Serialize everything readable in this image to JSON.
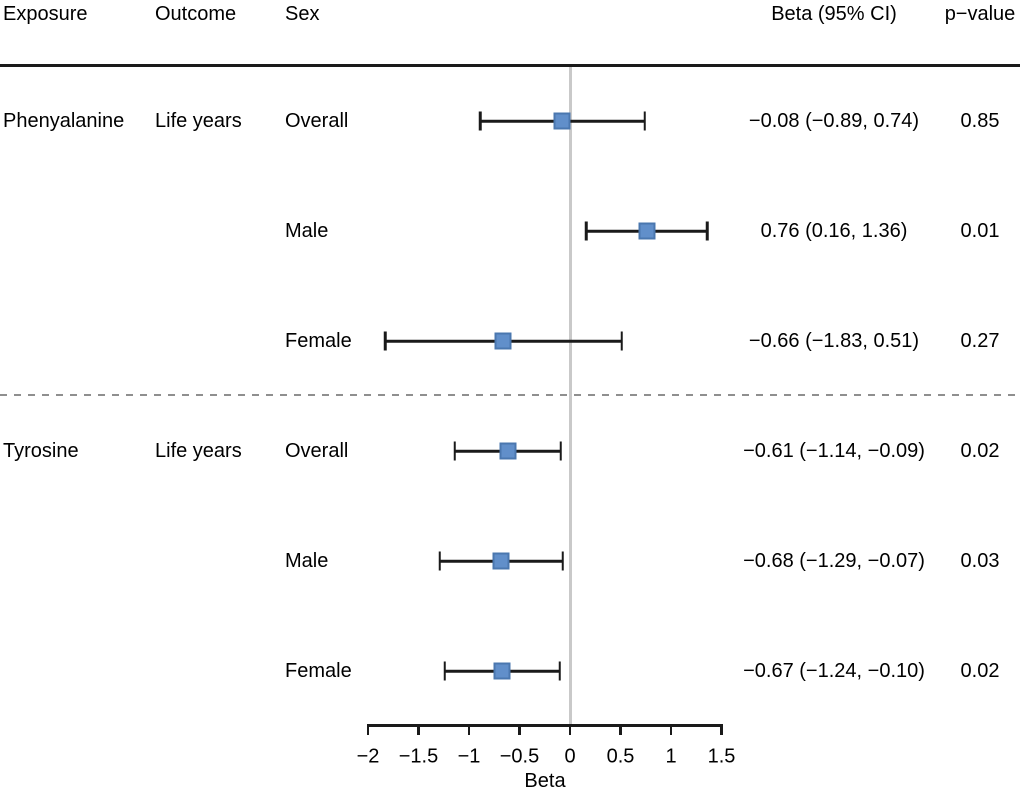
{
  "header": {
    "exposure": "Exposure",
    "outcome": "Outcome",
    "sex": "Sex",
    "beta_ci": "Beta (95% CI)",
    "p_value": "p−value"
  },
  "chart_data": {
    "type": "scatter",
    "subtype": "forest-plot",
    "title": "",
    "xlabel": "Beta",
    "ylabel": "",
    "xlim": [
      -2,
      1.5
    ],
    "x_tick_values": [
      -2,
      -1.5,
      -1,
      -0.5,
      0,
      0.5,
      1,
      1.5
    ],
    "x_tick_labels": [
      "−2",
      "−1.5",
      "−1",
      "−0.5",
      "0",
      "0.5",
      "1",
      "1.5"
    ],
    "reference_line_x": 0,
    "grid": false,
    "legend": "none",
    "marker_fill_color": "#618fca",
    "marker_border_color": "#4a77af",
    "divider_after_index": 2,
    "rows": [
      {
        "exposure": "Phenyalanine",
        "outcome": "Life years",
        "sex": "Overall",
        "beta": -0.08,
        "ci_low": -0.89,
        "ci_high": 0.74,
        "beta_ci_text": "−0.08 (−0.89, 0.74)",
        "p_value": "0.85"
      },
      {
        "exposure": "",
        "outcome": "",
        "sex": "Male",
        "beta": 0.76,
        "ci_low": 0.16,
        "ci_high": 1.36,
        "beta_ci_text": "0.76 (0.16, 1.36)",
        "p_value": "0.01"
      },
      {
        "exposure": "",
        "outcome": "",
        "sex": "Female",
        "beta": -0.66,
        "ci_low": -1.83,
        "ci_high": 0.51,
        "beta_ci_text": "−0.66 (−1.83, 0.51)",
        "p_value": "0.27"
      },
      {
        "exposure": "Tyrosine",
        "outcome": "Life years",
        "sex": "Overall",
        "beta": -0.61,
        "ci_low": -1.14,
        "ci_high": -0.09,
        "beta_ci_text": "−0.61 (−1.14, −0.09)",
        "p_value": "0.02"
      },
      {
        "exposure": "",
        "outcome": "",
        "sex": "Male",
        "beta": -0.68,
        "ci_low": -1.29,
        "ci_high": -0.07,
        "beta_ci_text": "−0.68 (−1.29, −0.07)",
        "p_value": "0.03"
      },
      {
        "exposure": "",
        "outcome": "",
        "sex": "Female",
        "beta": -0.67,
        "ci_low": -1.24,
        "ci_high": -0.1,
        "beta_ci_text": "−0.67 (−1.24, −0.10)",
        "p_value": "0.02"
      }
    ]
  }
}
